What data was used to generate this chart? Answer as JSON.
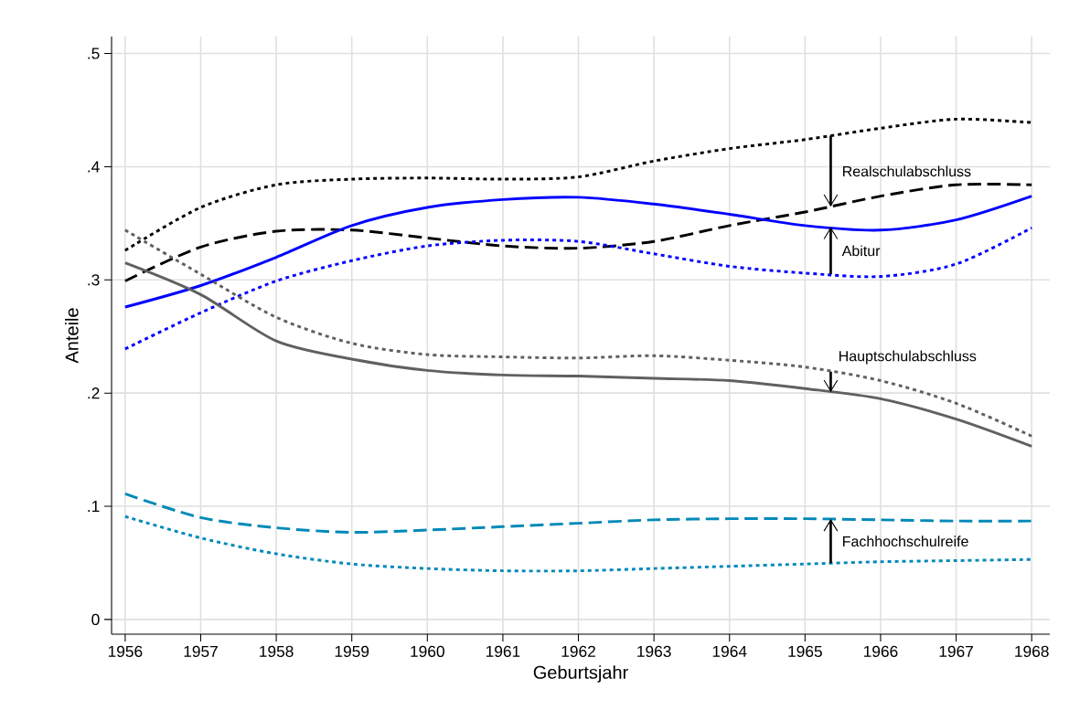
{
  "chart_data": {
    "type": "line",
    "xlabel": "Geburtsjahr",
    "ylabel": "Anteile",
    "x": [
      1956,
      1957,
      1958,
      1959,
      1960,
      1961,
      1962,
      1963,
      1964,
      1965,
      1966,
      1967,
      1968
    ],
    "series": [
      {
        "color": "#000000",
        "line_style": "dashed",
        "values": [
          0.299,
          0.329,
          0.343,
          0.344,
          0.337,
          0.33,
          0.328,
          0.334,
          0.348,
          0.36,
          0.374,
          0.384,
          0.384
        ]
      },
      {
        "color": "#000000",
        "line_style": "dotted",
        "values": [
          0.326,
          0.364,
          0.384,
          0.389,
          0.39,
          0.389,
          0.391,
          0.405,
          0.416,
          0.424,
          0.434,
          0.442,
          0.439
        ]
      },
      {
        "color": "#0000ff",
        "line_style": "solid",
        "values": [
          0.276,
          0.295,
          0.32,
          0.348,
          0.364,
          0.371,
          0.373,
          0.367,
          0.358,
          0.348,
          0.344,
          0.353,
          0.374
        ]
      },
      {
        "color": "#0000ff",
        "line_style": "dotted",
        "values": [
          0.239,
          0.271,
          0.299,
          0.317,
          0.33,
          0.335,
          0.334,
          0.323,
          0.312,
          0.306,
          0.303,
          0.314,
          0.346
        ]
      },
      {
        "color": "#606060",
        "line_style": "solid",
        "values": [
          0.315,
          0.287,
          0.246,
          0.23,
          0.22,
          0.216,
          0.215,
          0.213,
          0.211,
          0.204,
          0.195,
          0.177,
          0.153
        ]
      },
      {
        "color": "#606060",
        "line_style": "dotted",
        "values": [
          0.344,
          0.305,
          0.267,
          0.244,
          0.234,
          0.232,
          0.231,
          0.233,
          0.229,
          0.223,
          0.211,
          0.191,
          0.162
        ]
      },
      {
        "color": "#0089b8",
        "line_style": "dashed",
        "values": [
          0.111,
          0.09,
          0.081,
          0.077,
          0.079,
          0.082,
          0.085,
          0.088,
          0.089,
          0.089,
          0.088,
          0.087,
          0.087
        ]
      },
      {
        "color": "#0089b8",
        "line_style": "dotted",
        "values": [
          0.091,
          0.072,
          0.058,
          0.049,
          0.045,
          0.043,
          0.043,
          0.045,
          0.047,
          0.049,
          0.051,
          0.052,
          0.053
        ]
      }
    ],
    "annotations": [
      "Realschulabschluss",
      "Abitur",
      "Hauptschulabschluss",
      "Fachhochschulreife"
    ],
    "xlim": [
      1955.82,
      1968.24
    ],
    "ylim": [
      -0.013,
      0.515
    ],
    "xticks": [
      1956,
      1957,
      1958,
      1959,
      1960,
      1961,
      1962,
      1963,
      1964,
      1965,
      1966,
      1967,
      1968
    ],
    "yticks": [
      {
        "value": 0,
        "label": "0"
      },
      {
        "value": 0.1,
        "label": ".1"
      },
      {
        "value": 0.2,
        "label": ".2"
      },
      {
        "value": 0.3,
        "label": ".3"
      },
      {
        "value": 0.4,
        "label": ".4"
      },
      {
        "value": 0.5,
        "label": ".5"
      }
    ],
    "grid": true
  }
}
